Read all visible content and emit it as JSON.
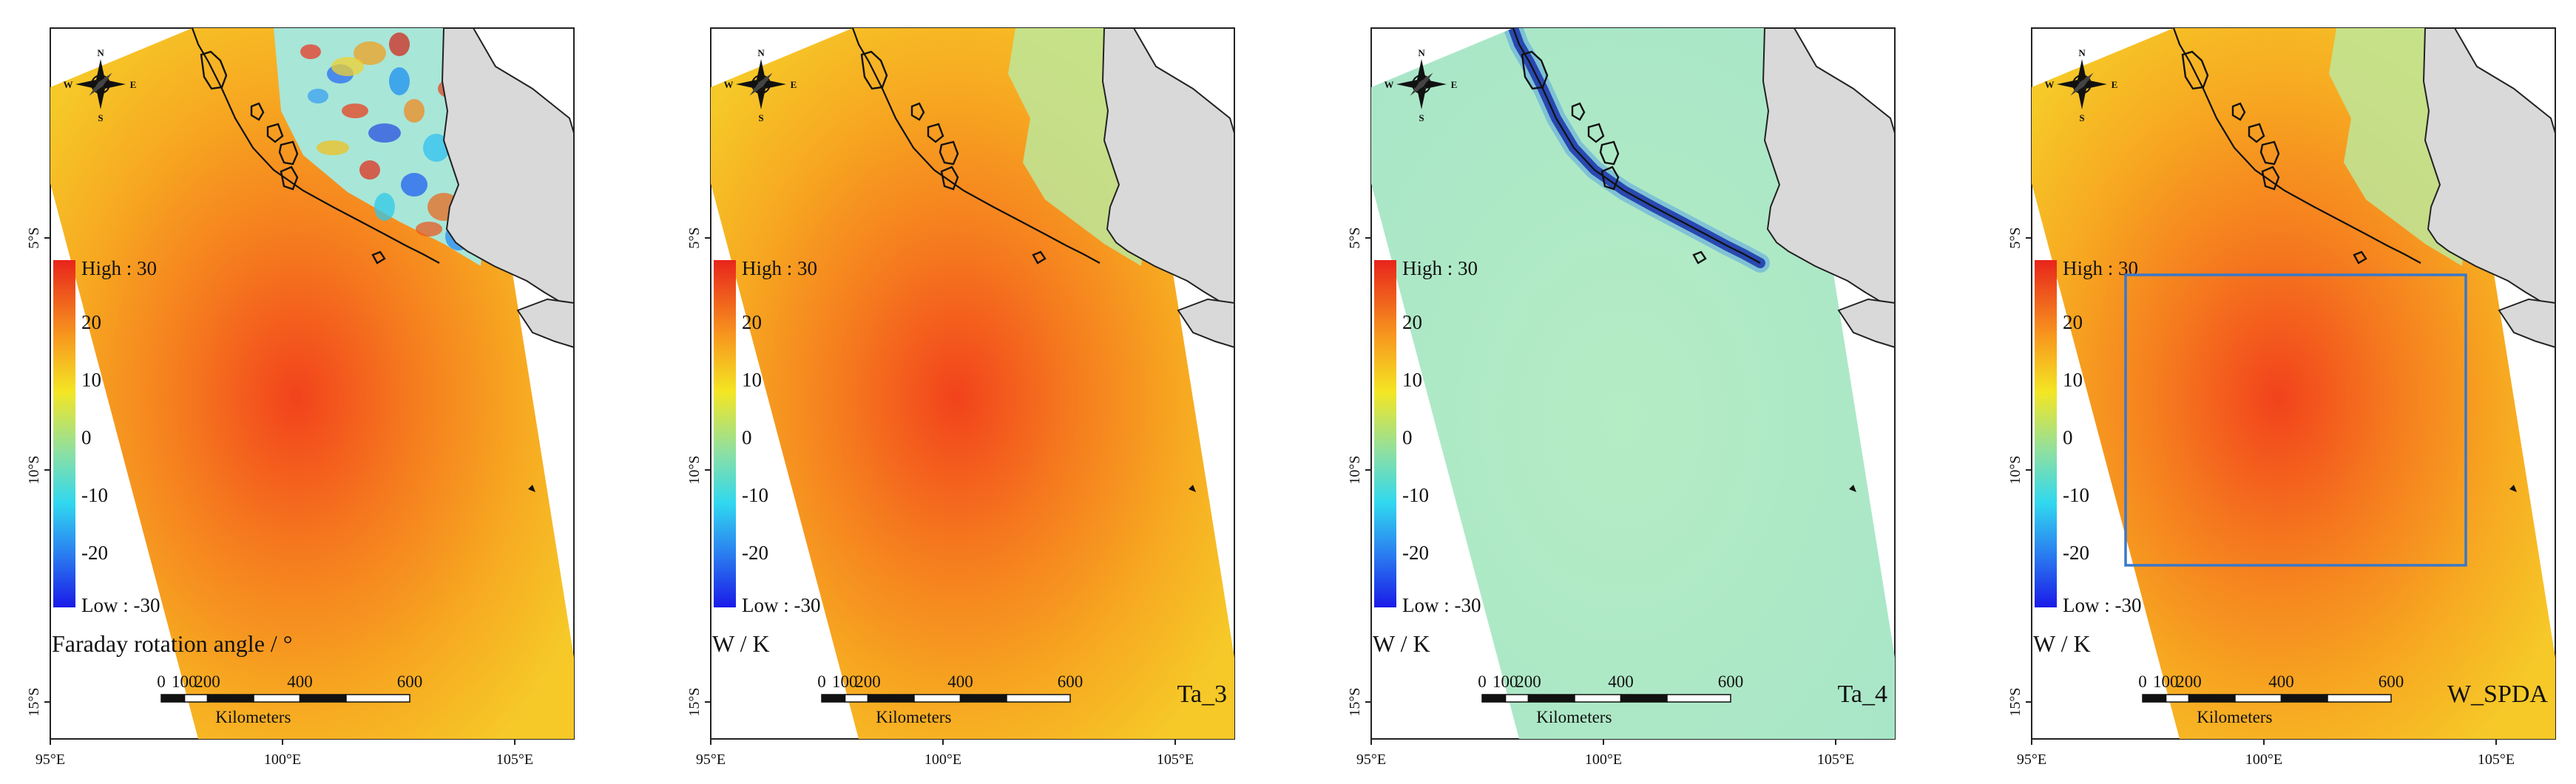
{
  "figure": {
    "panels": [
      {
        "id": "faraday",
        "kind": "faraday",
        "label": "",
        "unit_label": "Faraday rotation angle / °",
        "has_box": false
      },
      {
        "id": "ta3",
        "kind": "smooth",
        "label": "Ta_3",
        "unit_label": "W / K",
        "has_box": false
      },
      {
        "id": "ta4",
        "kind": "residual",
        "label": "Ta_4",
        "unit_label": "W / K",
        "has_box": false
      },
      {
        "id": "wspda",
        "kind": "smooth",
        "label": "W_SPDA",
        "unit_label": "W / K",
        "has_box": true
      }
    ],
    "axes": {
      "x_ticks": [
        "95°E",
        "100°E",
        "105°E"
      ],
      "y_ticks": [
        "5°S",
        "10°S",
        "15°S"
      ]
    },
    "compass": {
      "n": "N",
      "s": "S",
      "e": "E",
      "w": "W"
    },
    "legend": {
      "high": "High : 30",
      "low": "Low : -30",
      "ticks": [
        "20",
        "10",
        "0",
        "-10",
        "-20"
      ]
    },
    "scale_bar": {
      "ticks": [
        "0",
        "100",
        "200",
        "400",
        "600"
      ],
      "unit": "Kilometers"
    }
  }
}
